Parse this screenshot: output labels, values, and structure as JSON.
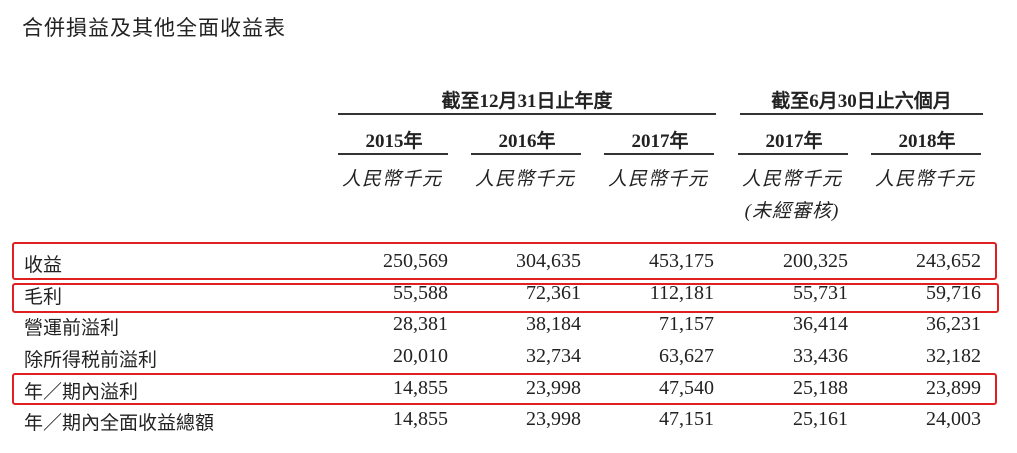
{
  "title": "合併損益及其他全面收益表",
  "header": {
    "groups": [
      "截至12月31日止年度",
      "截至6月30日止六個月"
    ],
    "years": [
      "2015年",
      "2016年",
      "2017年",
      "2017年",
      "2018年"
    ],
    "unit": "人民幣千元",
    "unaudited": "(未經審核)"
  },
  "rows": [
    {
      "label": "收益",
      "values": [
        "250,569",
        "304,635",
        "453,175",
        "200,325",
        "243,652"
      ],
      "highlighted": true
    },
    {
      "label": "毛利",
      "values": [
        "55,588",
        "72,361",
        "112,181",
        "55,731",
        "59,716"
      ],
      "highlighted": true
    },
    {
      "label": "營運前溢利",
      "values": [
        "28,381",
        "38,184",
        "71,157",
        "36,414",
        "36,231"
      ],
      "highlighted": false
    },
    {
      "label": "除所得税前溢利",
      "values": [
        "20,010",
        "32,734",
        "63,627",
        "33,436",
        "32,182"
      ],
      "highlighted": false
    },
    {
      "label": "年／期內溢利",
      "values": [
        "14,855",
        "23,998",
        "47,540",
        "25,188",
        "23,899"
      ],
      "highlighted": true
    },
    {
      "label": "年／期內全面收益總額",
      "values": [
        "14,855",
        "23,998",
        "47,151",
        "25,161",
        "24,003"
      ],
      "highlighted": false
    }
  ],
  "highlight_color": "#e02020"
}
